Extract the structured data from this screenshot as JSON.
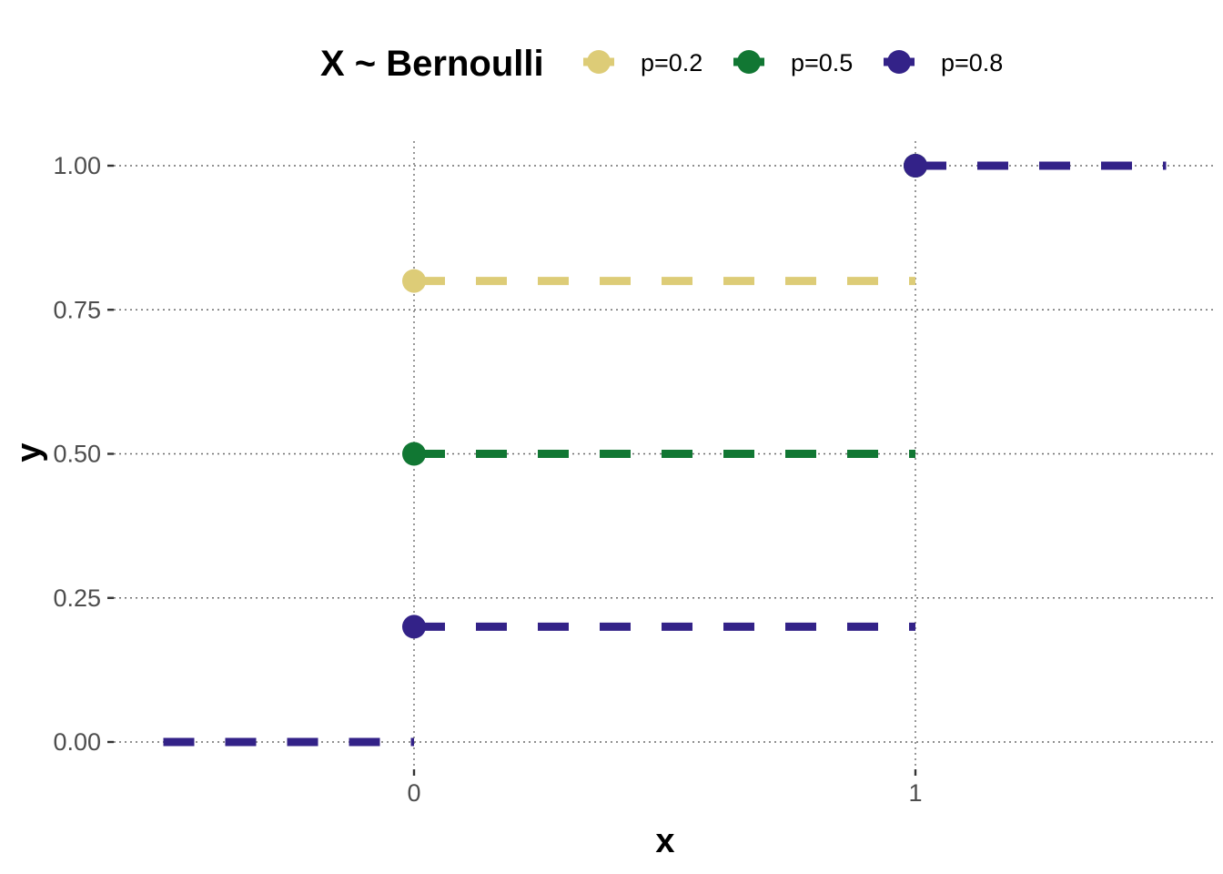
{
  "chart_data": {
    "type": "line",
    "xlabel": "x",
    "ylabel": "y",
    "xlim": [
      -0.5,
      1.5
    ],
    "ylim": [
      0,
      1
    ],
    "x_ticks": [
      0,
      1
    ],
    "x_tick_labels": [
      "0",
      "1"
    ],
    "y_ticks": [
      0,
      0.25,
      0.5,
      0.75,
      1
    ],
    "y_tick_labels": [
      "0.00",
      "0.25",
      "0.50",
      "0.75",
      "1.00"
    ],
    "grid": true,
    "legend": {
      "title": "X ~ Bernoulli",
      "placement": "top"
    },
    "series": [
      {
        "name": "p=0.2",
        "color": "#DDCC77",
        "segments": [
          {
            "x": [
              -0.5,
              0
            ],
            "y": [
              0,
              0
            ]
          },
          {
            "x": [
              0,
              1
            ],
            "y": [
              0.8,
              0.8
            ]
          },
          {
            "x": [
              1,
              1.5
            ],
            "y": [
              1,
              1
            ]
          }
        ],
        "points": [
          {
            "x": 0,
            "y": 0.8
          },
          {
            "x": 1,
            "y": 1
          }
        ]
      },
      {
        "name": "p=0.5",
        "color": "#117733",
        "segments": [
          {
            "x": [
              -0.5,
              0
            ],
            "y": [
              0,
              0
            ]
          },
          {
            "x": [
              0,
              1
            ],
            "y": [
              0.5,
              0.5
            ]
          },
          {
            "x": [
              1,
              1.5
            ],
            "y": [
              1,
              1
            ]
          }
        ],
        "points": [
          {
            "x": 0,
            "y": 0.5
          },
          {
            "x": 1,
            "y": 1
          }
        ]
      },
      {
        "name": "p=0.8",
        "color": "#332288",
        "segments": [
          {
            "x": [
              -0.5,
              0
            ],
            "y": [
              0,
              0
            ]
          },
          {
            "x": [
              0,
              1
            ],
            "y": [
              0.2,
              0.2
            ]
          },
          {
            "x": [
              1,
              1.5
            ],
            "y": [
              1,
              1
            ]
          }
        ],
        "points": [
          {
            "x": 0,
            "y": 0.2
          },
          {
            "x": 1,
            "y": 1
          }
        ]
      }
    ]
  }
}
